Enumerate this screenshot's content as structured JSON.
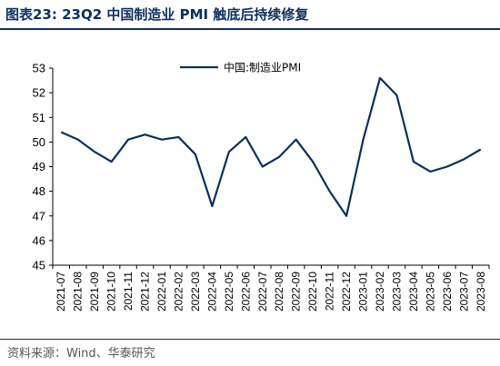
{
  "title": "图表23:  23Q2 中国制造业 PMI 触底后持续修复",
  "source": "资料来源：Wind、华泰研究",
  "colors": {
    "line": "#0b2f5e",
    "title": "#0b2f5e"
  },
  "chart_data": {
    "type": "line",
    "categories": [
      "2021-07",
      "2021-08",
      "2021-09",
      "2021-10",
      "2021-11",
      "2021-12",
      "2022-01",
      "2022-02",
      "2022-03",
      "2022-04",
      "2022-05",
      "2022-06",
      "2022-07",
      "2022-08",
      "2022-09",
      "2022-10",
      "2022-11",
      "2022-12",
      "2023-01",
      "2023-02",
      "2023-03",
      "2023-04",
      "2023-05",
      "2023-06",
      "2023-07",
      "2023-08"
    ],
    "series": [
      {
        "name": "中国:制造业PMI",
        "values": [
          50.4,
          50.1,
          49.6,
          49.2,
          50.1,
          50.3,
          50.1,
          50.2,
          49.5,
          47.4,
          49.6,
          50.2,
          49.0,
          49.4,
          50.1,
          49.2,
          48.0,
          47.0,
          50.1,
          52.6,
          51.9,
          49.2,
          48.8,
          49.0,
          49.3,
          49.7
        ]
      }
    ],
    "ylim": [
      45,
      53
    ],
    "yticks": [
      45,
      46,
      47,
      48,
      49,
      50,
      51,
      52,
      53
    ],
    "legend": "top-center",
    "grid": false
  }
}
